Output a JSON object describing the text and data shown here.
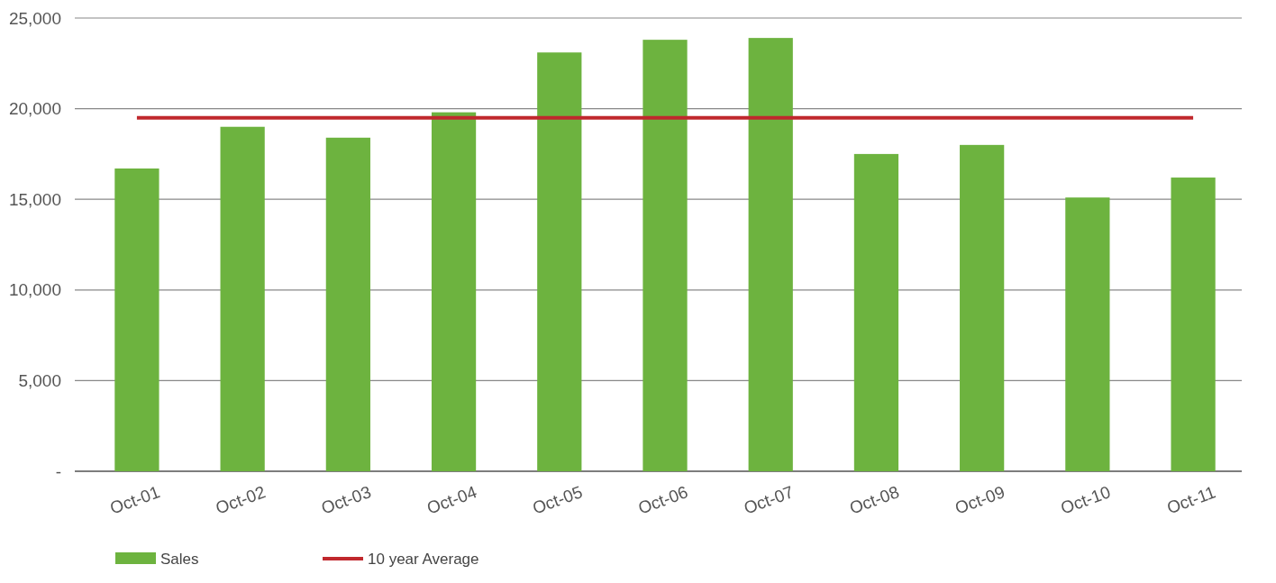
{
  "chart_data": {
    "type": "bar",
    "categories": [
      "Oct-01",
      "Oct-02",
      "Oct-03",
      "Oct-04",
      "Oct-05",
      "Oct-06",
      "Oct-07",
      "Oct-08",
      "Oct-09",
      "Oct-10",
      "Oct-11"
    ],
    "series": [
      {
        "name": "Sales",
        "color": "#6db33f",
        "values": [
          16700,
          19000,
          18400,
          19800,
          23100,
          23800,
          23900,
          17500,
          18000,
          15100,
          16200
        ]
      },
      {
        "name": "10 year Average",
        "type": "line",
        "color": "#c0282d",
        "values": [
          19500,
          19500,
          19500,
          19500,
          19500,
          19500,
          19500,
          19500,
          19500,
          19500,
          19500
        ]
      }
    ],
    "ylim": [
      0,
      25000
    ],
    "yticks": [
      {
        "value": 0,
        "label": "-"
      },
      {
        "value": 5000,
        "label": "5,000"
      },
      {
        "value": 10000,
        "label": "10,000"
      },
      {
        "value": 15000,
        "label": "15,000"
      },
      {
        "value": 20000,
        "label": "20,000"
      },
      {
        "value": 25000,
        "label": "25,000"
      }
    ],
    "grid": "y",
    "legend": "bottom left"
  }
}
